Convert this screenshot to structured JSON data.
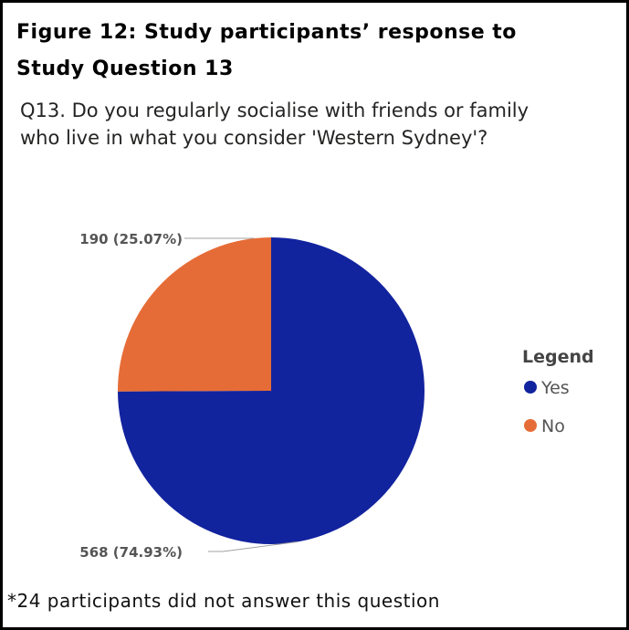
{
  "figure": {
    "title_line1": "Figure 12: Study participants’ response to",
    "title_line2": "Study Question 13"
  },
  "chart_data": {
    "type": "pie",
    "title": "Q13. Do you regularly socialise with friends or family who live in what you consider 'Western Sydney'?",
    "title_line1": "Q13. Do you regularly socialise with friends or family",
    "title_line2": "who live in what you consider 'Western Sydney'?",
    "legend_title": "Legend",
    "legend_position": "right",
    "slices": [
      {
        "name": "Yes",
        "value": 568,
        "percent": "74.93%",
        "color": "#12239e",
        "data_label": "568 (74.93%)"
      },
      {
        "name": "No",
        "value": 190,
        "percent": "25.07%",
        "color": "#e66c37",
        "data_label": "190 (25.07%)"
      }
    ]
  },
  "footnote": "*24 participants did not answer this question"
}
